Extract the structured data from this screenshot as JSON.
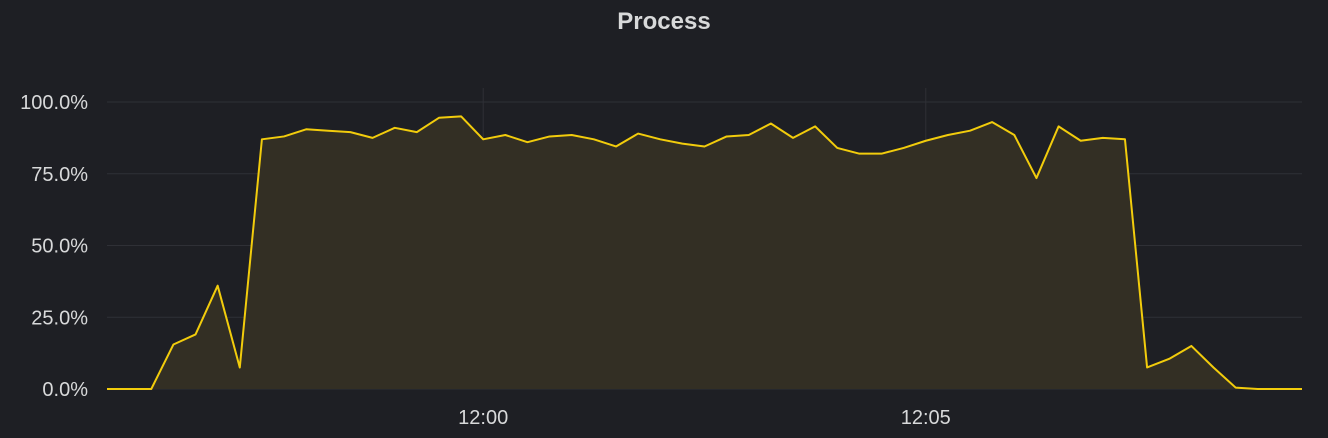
{
  "chart_data": {
    "type": "area",
    "title": "Process",
    "y_ticks": [
      "0.0%",
      "25.0%",
      "50.0%",
      "75.0%",
      "100.0%"
    ],
    "y_tick_values": [
      0,
      25,
      50,
      75,
      100
    ],
    "ylim": [
      0,
      100
    ],
    "x_ticks": [
      "12:00",
      "12:05"
    ],
    "x_tick_values": [
      4.25,
      9.25
    ],
    "xlim": [
      0,
      13.5
    ],
    "grid": true,
    "line_color": "#f2cc0c",
    "fill_color": "#332f24",
    "x": [
      0,
      0.25,
      0.5,
      0.75,
      1.0,
      1.25,
      1.5,
      1.75,
      2.0,
      2.25,
      2.5,
      2.75,
      3.0,
      3.25,
      3.5,
      3.75,
      4.0,
      4.25,
      4.5,
      4.75,
      5.0,
      5.25,
      5.5,
      5.75,
      6.0,
      6.25,
      6.5,
      6.75,
      7.0,
      7.25,
      7.5,
      7.75,
      8.0,
      8.25,
      8.5,
      8.75,
      9.0,
      9.25,
      9.5,
      9.75,
      10.0,
      10.25,
      10.5,
      10.75,
      11.0,
      11.25,
      11.5,
      11.75,
      12.0,
      12.25,
      12.5,
      12.75,
      13.0,
      13.25,
      13.5
    ],
    "values": [
      0,
      0,
      0,
      15.5,
      19,
      36,
      7.5,
      87,
      88,
      90.5,
      90,
      89.5,
      87.5,
      91,
      89.5,
      94.5,
      95,
      87,
      88.5,
      86,
      88,
      88.5,
      87,
      84.5,
      89,
      87,
      85.5,
      84.5,
      88,
      88.5,
      92.5,
      87.5,
      91.5,
      84,
      82,
      82,
      84,
      86.5,
      88.5,
      90,
      93,
      88.5,
      73.5,
      91.5,
      86.5,
      87.5,
      87,
      7.5,
      10.5,
      15,
      7.5,
      0.5,
      0,
      0,
      0
    ]
  }
}
